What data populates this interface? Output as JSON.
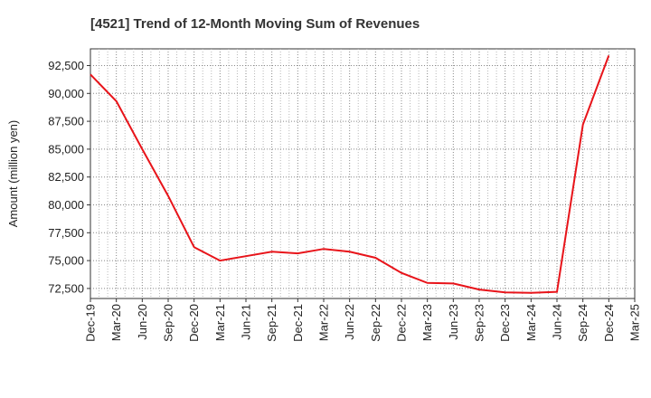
{
  "chart_data": {
    "type": "line",
    "title": "[4521]  Trend of 12-Month Moving Sum of Revenues",
    "xlabel": "",
    "ylabel": "Amount (million yen)",
    "ylim": [
      71600,
      94000
    ],
    "yticks": [
      72500,
      75000,
      77500,
      80000,
      82500,
      85000,
      87500,
      90000,
      92500
    ],
    "ytick_labels": [
      "72,500",
      "75,000",
      "77,500",
      "80,000",
      "82,500",
      "85,000",
      "87,500",
      "90,000",
      "92,500"
    ],
    "xtick_labels": [
      "Dec-19",
      "Mar-20",
      "Jun-20",
      "Sep-20",
      "Dec-20",
      "Mar-21",
      "Jun-21",
      "Sep-21",
      "Dec-21",
      "Mar-22",
      "Jun-22",
      "Sep-22",
      "Dec-22",
      "Mar-23",
      "Jun-23",
      "Sep-23",
      "Dec-23",
      "Mar-24",
      "Jun-24",
      "Sep-24",
      "Dec-24",
      "Mar-25"
    ],
    "grid": true,
    "line_color": "#e8141a",
    "series": [
      {
        "x": [
          "Dec-19",
          "Mar-20",
          "Jun-20",
          "Sep-20",
          "Dec-20",
          "Mar-21",
          "Jun-21",
          "Sep-21",
          "Dec-21",
          "Mar-22",
          "Jun-22",
          "Sep-22",
          "Dec-22",
          "Mar-23",
          "Jun-23",
          "Sep-23",
          "Dec-23",
          "Mar-24",
          "Jun-24",
          "Sep-24",
          "Dec-24"
        ],
        "values": [
          91700,
          89300,
          85000,
          80800,
          76200,
          75000,
          75400,
          75800,
          75650,
          76050,
          75800,
          75250,
          73900,
          73000,
          72950,
          72400,
          72150,
          72100,
          72200,
          87200,
          93400
        ]
      }
    ]
  }
}
